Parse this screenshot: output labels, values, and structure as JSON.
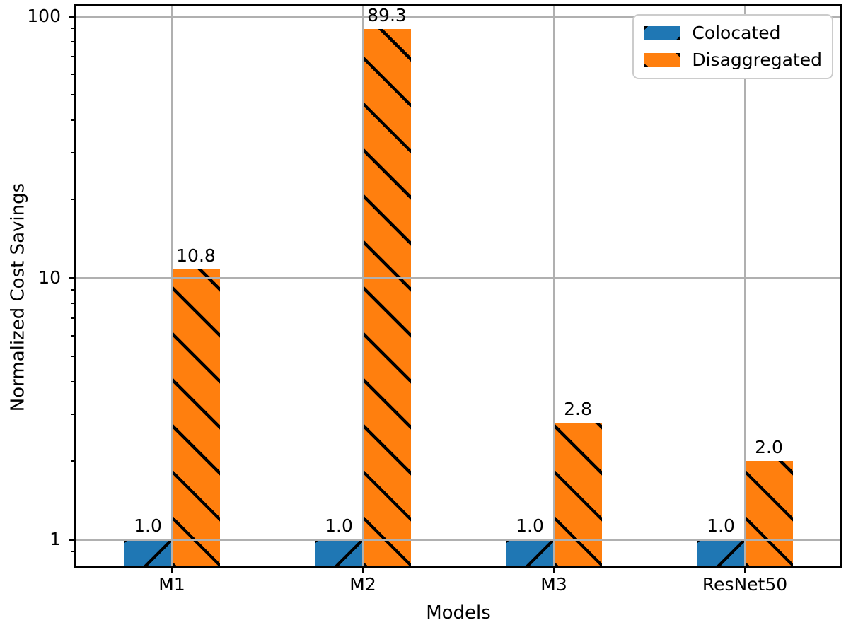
{
  "chart_data": {
    "type": "bar",
    "title": "",
    "xlabel": "Models",
    "ylabel": "Normalized Cost Savings",
    "categories": [
      "M1",
      "M2",
      "M3",
      "ResNet50"
    ],
    "series": [
      {
        "name": "Colocated",
        "color": "#1f77b4",
        "hatch": "/",
        "values": [
          1.0,
          1.0,
          1.0,
          1.0
        ],
        "labels": [
          "1.0",
          "1.0",
          "1.0",
          "1.0"
        ]
      },
      {
        "name": "Disaggregated",
        "color": "#ff7f0e",
        "hatch": "\\",
        "values": [
          10.8,
          89.3,
          2.8,
          2.0
        ],
        "labels": [
          "10.8",
          "89.3",
          "2.8",
          "2.0"
        ]
      }
    ],
    "yscale": "log",
    "ylim": [
      0.79,
      110
    ],
    "yticks_major": [
      1,
      10,
      100
    ],
    "ytick_labels": [
      "1",
      "10",
      "100"
    ],
    "yticks_minor": [
      0.9,
      2,
      3,
      4,
      5,
      6,
      7,
      8,
      9,
      20,
      30,
      40,
      50,
      60,
      70,
      80,
      90
    ],
    "grid": {
      "on": true,
      "color": "#b0b0b0",
      "horizontal_at": [
        1,
        10,
        100
      ],
      "vertical": "per-category"
    },
    "hatch_color": "#000000",
    "legend": {
      "position": "upper right",
      "entries": [
        "Colocated",
        "Disaggregated"
      ]
    },
    "text_color": "#000000",
    "spine_color": "#000000"
  }
}
